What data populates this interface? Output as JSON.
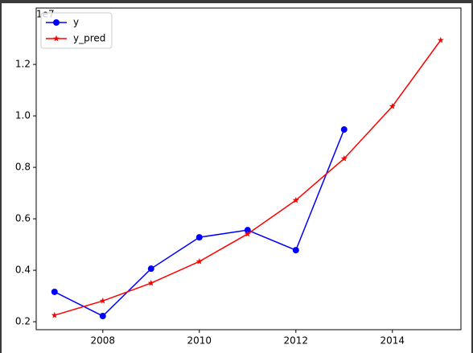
{
  "chart_data": {
    "type": "line",
    "x": [
      2007,
      2008,
      2009,
      2010,
      2011,
      2012,
      2013,
      2014,
      2015
    ],
    "series": [
      {
        "name": "y",
        "color": "#0000ff",
        "marker": "circle",
        "values": [
          0.316,
          0.222,
          0.406,
          0.528,
          0.556,
          0.478,
          0.947,
          null,
          null
        ]
      },
      {
        "name": "y_pred",
        "color": "#ff0000",
        "marker": "star",
        "values": [
          0.225,
          0.281,
          0.35,
          0.434,
          0.541,
          0.672,
          0.834,
          1.037,
          1.294
        ]
      }
    ],
    "xlim": [
      2006.62,
      2015.42
    ],
    "xticks": [
      2008,
      2010,
      2012,
      2014
    ],
    "ylim": [
      0.169,
      1.419
    ],
    "yticks": [
      0.2,
      0.4,
      0.6,
      0.8,
      {
        "value": 1,
        "label": "1.0"
      },
      1.2
    ],
    "y_offset_label": "1e7",
    "legend": "upper left"
  }
}
